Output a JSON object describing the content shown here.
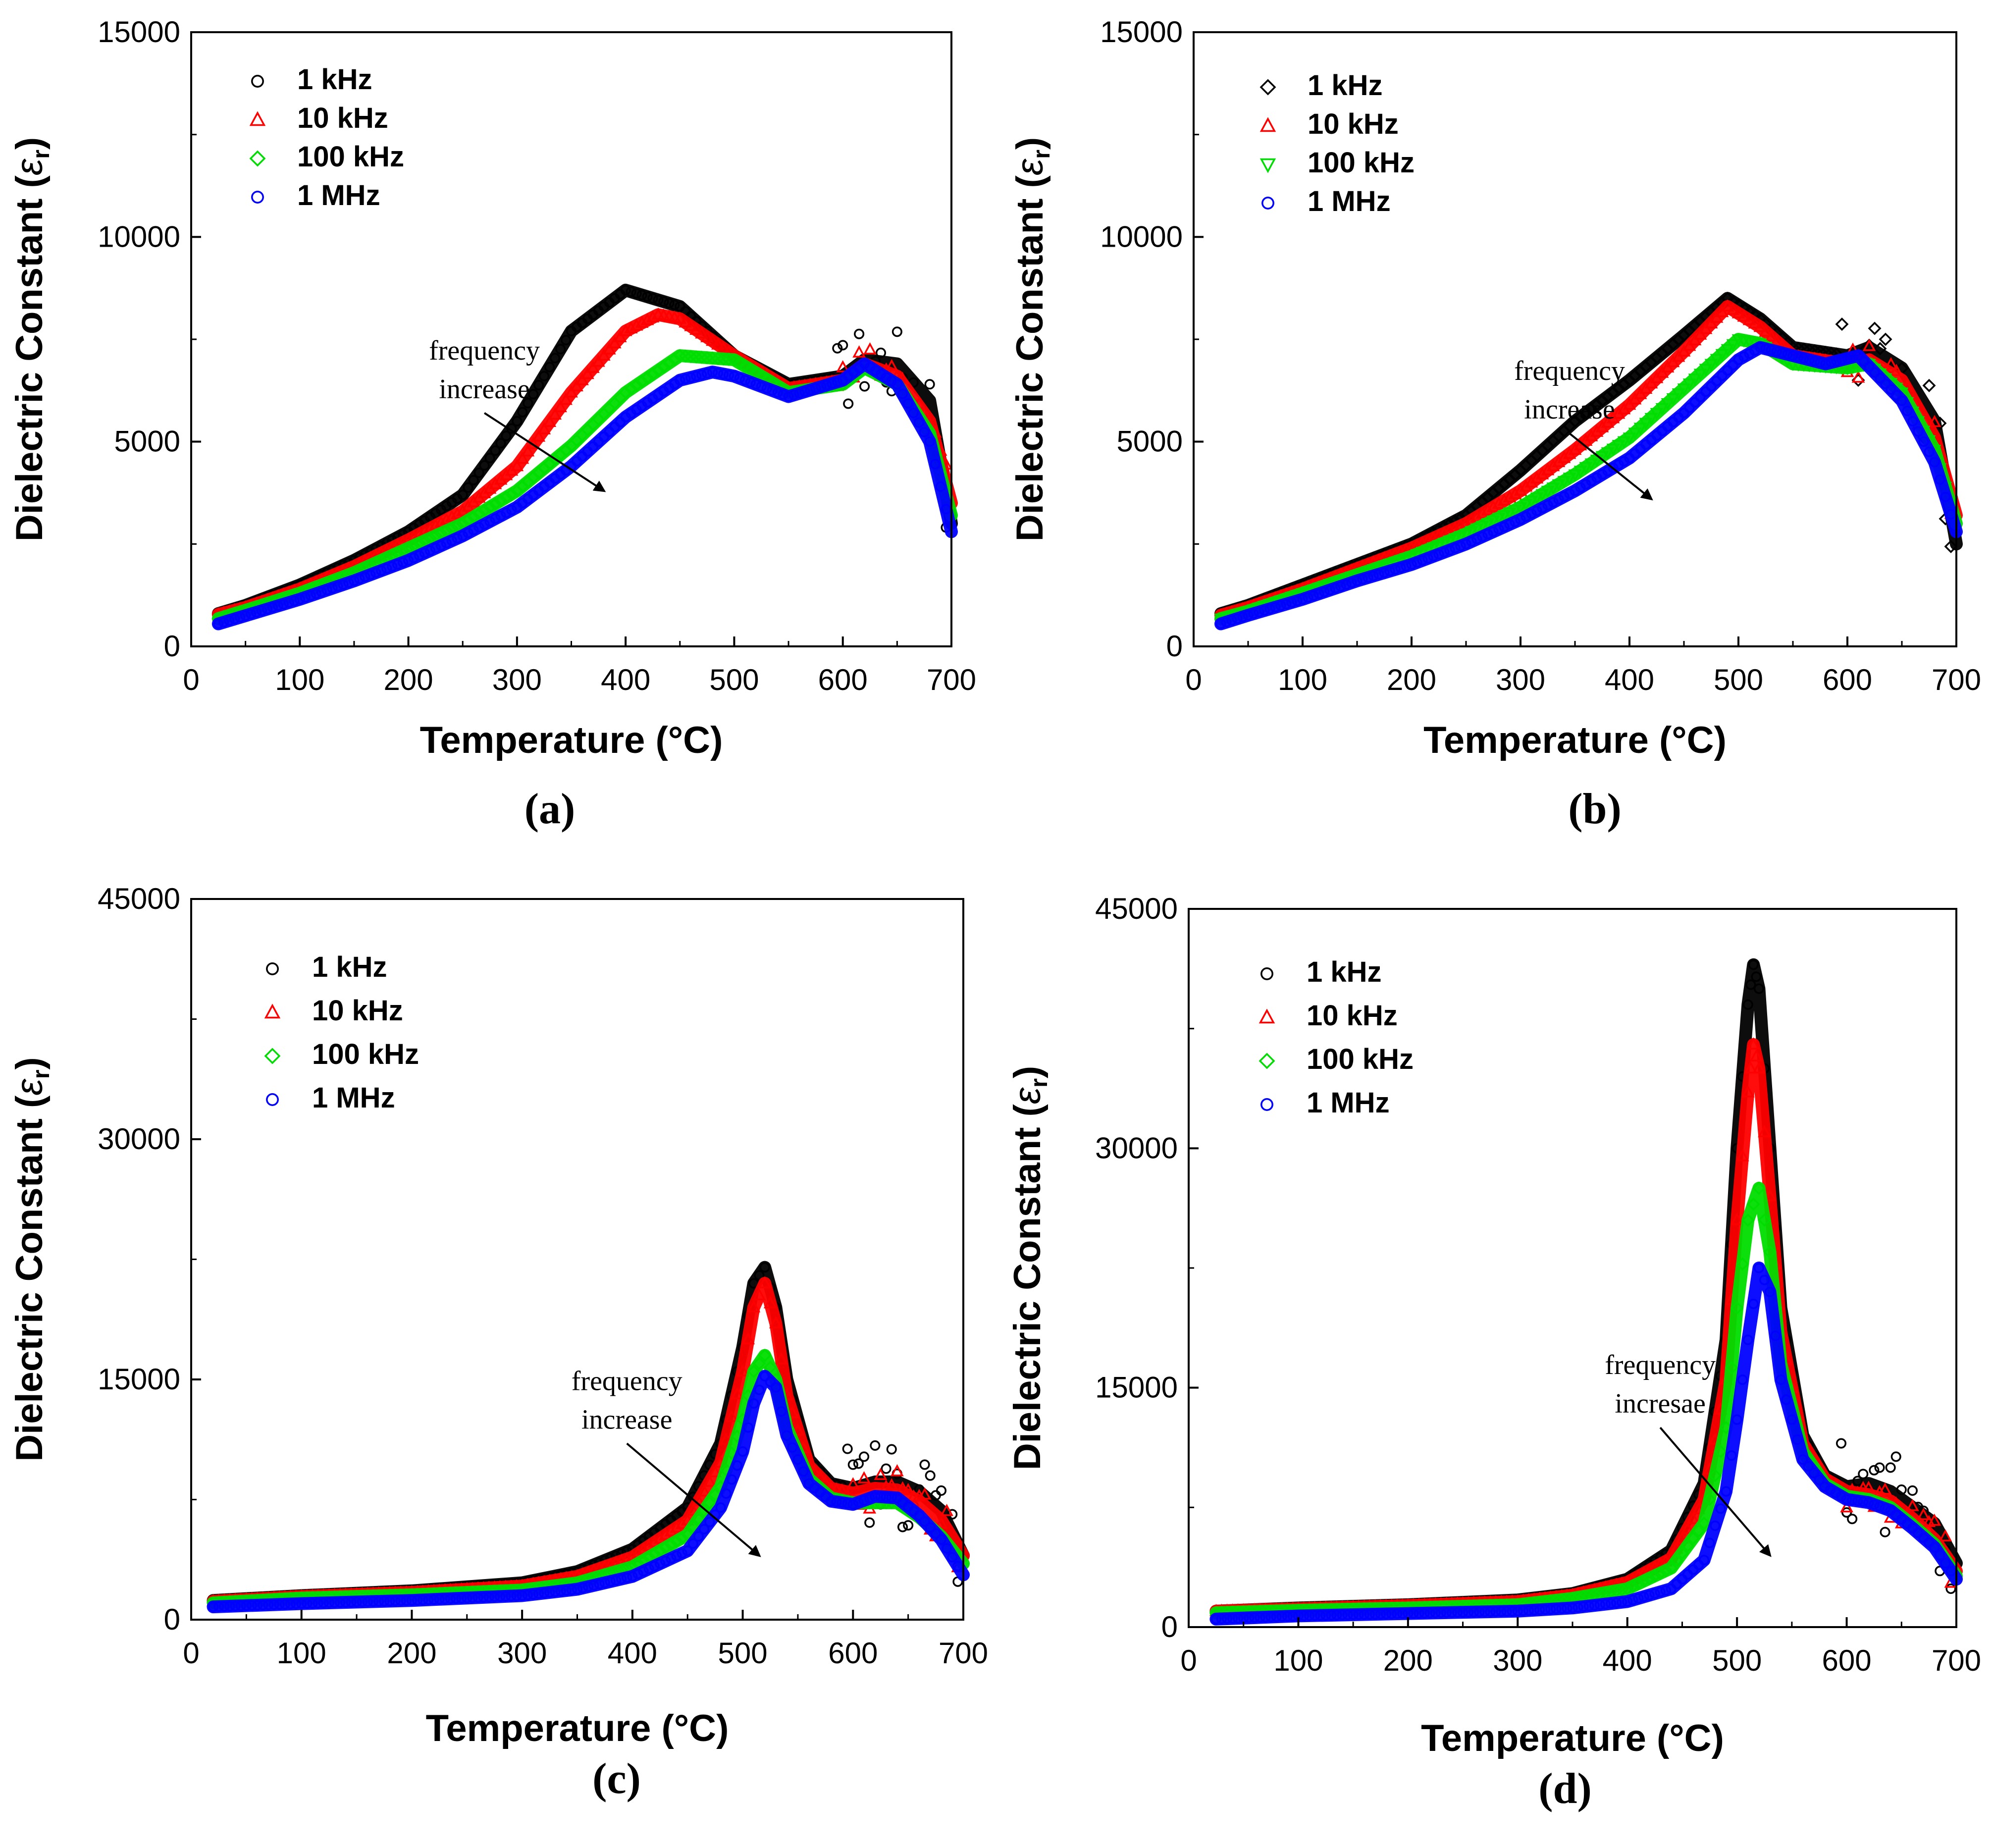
{
  "chart_data": [
    {
      "type": "scatter",
      "panel_label": "(a)",
      "xlabel": "Temperature (°C)",
      "ylabel": "Dielectric Constant (εr)",
      "ylabel_main": "Dielectric Constant (",
      "ylabel_symbol": "ε",
      "ylabel_sub": "r",
      "ylabel_close": ")",
      "xlim": [
        0,
        700
      ],
      "ylim": [
        0,
        15000
      ],
      "xticks": [
        0,
        100,
        200,
        300,
        400,
        500,
        600,
        700
      ],
      "yticks": [
        0,
        5000,
        10000,
        15000
      ],
      "legend_position": "top-left",
      "annotation": {
        "line1": "frequency",
        "line2": "increase",
        "arrow_from": [
          270,
          5700
        ],
        "arrow_to": [
          380,
          3800
        ]
      },
      "series": [
        {
          "name": "1 kHz",
          "color": "#000000",
          "marker": "circle",
          "x": [
            25,
            50,
            100,
            150,
            200,
            250,
            300,
            350,
            400,
            450,
            500,
            550,
            600,
            620,
            650,
            680,
            700
          ],
          "y": [
            800,
            1000,
            1500,
            2100,
            2800,
            3700,
            5500,
            7700,
            8700,
            8300,
            7100,
            6400,
            6600,
            7000,
            6900,
            6000,
            3000
          ]
        },
        {
          "name": "10 kHz",
          "color": "#ff0000",
          "marker": "triangle",
          "x": [
            25,
            50,
            100,
            150,
            200,
            250,
            300,
            350,
            400,
            430,
            450,
            500,
            550,
            600,
            620,
            650,
            680,
            700
          ],
          "y": [
            780,
            950,
            1400,
            1950,
            2600,
            3300,
            4400,
            6200,
            7700,
            8100,
            8000,
            7100,
            6300,
            6500,
            6900,
            6600,
            5500,
            3500
          ]
        },
        {
          "name": "100 kHz",
          "color": "#00dd00",
          "marker": "diamond",
          "x": [
            25,
            50,
            100,
            150,
            200,
            250,
            300,
            350,
            400,
            450,
            500,
            550,
            600,
            620,
            650,
            680,
            700
          ],
          "y": [
            680,
            880,
            1300,
            1800,
            2400,
            3000,
            3800,
            4900,
            6200,
            7100,
            7000,
            6200,
            6400,
            6800,
            6400,
            5200,
            3200
          ]
        },
        {
          "name": "1 MHz",
          "color": "#0000ff",
          "marker": "circle",
          "x": [
            25,
            50,
            100,
            150,
            200,
            250,
            300,
            350,
            400,
            450,
            480,
            500,
            550,
            600,
            620,
            650,
            680,
            700
          ],
          "y": [
            550,
            750,
            1150,
            1600,
            2100,
            2700,
            3400,
            4400,
            5600,
            6500,
            6700,
            6600,
            6100,
            6500,
            6900,
            6400,
            5000,
            2800
          ]
        }
      ]
    },
    {
      "type": "scatter",
      "panel_label": "(b)",
      "xlabel": "Temperature (°C)",
      "ylabel": "Dielectric Constant (εr)",
      "ylabel_main": "Dielectric Constant (",
      "ylabel_symbol": "ε",
      "ylabel_sub": "r",
      "ylabel_close": ")",
      "xlim": [
        0,
        700
      ],
      "ylim": [
        0,
        15000
      ],
      "xticks": [
        0,
        100,
        200,
        300,
        400,
        500,
        600,
        700
      ],
      "yticks": [
        0,
        5000,
        10000,
        15000
      ],
      "legend_position": "top-left",
      "annotation": {
        "line1": "frequency",
        "line2": "increase",
        "arrow_from": [
          345,
          5200
        ],
        "arrow_to": [
          420,
          3600
        ]
      },
      "series": [
        {
          "name": "1 kHz",
          "color": "#000000",
          "marker": "diamond",
          "x": [
            25,
            50,
            100,
            150,
            200,
            250,
            300,
            350,
            400,
            450,
            490,
            520,
            550,
            600,
            620,
            650,
            680,
            700
          ],
          "y": [
            800,
            1000,
            1500,
            2000,
            2500,
            3200,
            4300,
            5500,
            6500,
            7600,
            8500,
            8000,
            7300,
            7100,
            7300,
            6800,
            5500,
            2500
          ]
        },
        {
          "name": "10 kHz",
          "color": "#ff0000",
          "marker": "triangle",
          "x": [
            25,
            50,
            100,
            150,
            200,
            250,
            300,
            350,
            400,
            450,
            490,
            520,
            550,
            600,
            620,
            650,
            680,
            700
          ],
          "y": [
            760,
            950,
            1400,
            1900,
            2400,
            3000,
            3800,
            4800,
            5900,
            7200,
            8300,
            7800,
            7100,
            6900,
            7000,
            6500,
            5100,
            3200
          ]
        },
        {
          "name": "100 kHz",
          "color": "#00dd00",
          "marker": "triangle-down",
          "x": [
            25,
            50,
            100,
            150,
            200,
            250,
            300,
            350,
            400,
            450,
            500,
            520,
            550,
            600,
            620,
            650,
            680,
            700
          ],
          "y": [
            680,
            860,
            1300,
            1750,
            2200,
            2750,
            3400,
            4200,
            5100,
            6300,
            7500,
            7400,
            6900,
            6800,
            6900,
            6200,
            4800,
            3000
          ]
        },
        {
          "name": "1 MHz",
          "color": "#0000ff",
          "marker": "circle",
          "x": [
            25,
            50,
            100,
            150,
            200,
            250,
            300,
            350,
            400,
            450,
            500,
            520,
            550,
            580,
            610,
            650,
            680,
            700
          ],
          "y": [
            550,
            760,
            1150,
            1600,
            2000,
            2500,
            3100,
            3800,
            4600,
            5700,
            7000,
            7300,
            7100,
            6900,
            7100,
            6000,
            4500,
            2800
          ]
        }
      ]
    },
    {
      "type": "scatter",
      "panel_label": "(c)",
      "xlabel": "Temperature (°C)",
      "ylabel": "Dielectric Constant (εr)",
      "ylabel_main": "Dielectric Constant (",
      "ylabel_symbol": "ε",
      "ylabel_sub": "r",
      "ylabel_close": ")",
      "xlim": [
        0,
        700
      ],
      "ylim": [
        0,
        45000
      ],
      "xticks": [
        0,
        100,
        200,
        300,
        400,
        500,
        600,
        700
      ],
      "yticks": [
        0,
        15000,
        30000,
        45000
      ],
      "legend_position": "top-left",
      "annotation": {
        "line1": "frequency",
        "line2": "increase",
        "arrow_from": [
          395,
          11000
        ],
        "arrow_to": [
          515,
          4000
        ]
      },
      "series": [
        {
          "name": "1 kHz",
          "color": "#000000",
          "marker": "circle",
          "x": [
            20,
            100,
            200,
            300,
            350,
            400,
            450,
            480,
            500,
            510,
            520,
            530,
            540,
            560,
            580,
            600,
            620,
            640,
            660,
            680,
            700
          ],
          "y": [
            1200,
            1500,
            1800,
            2300,
            3000,
            4400,
            7000,
            11000,
            17000,
            21000,
            22000,
            19500,
            15000,
            10000,
            8500,
            8200,
            8600,
            8600,
            8000,
            6800,
            4000
          ]
        },
        {
          "name": "10 kHz",
          "color": "#ff0000",
          "marker": "triangle",
          "x": [
            20,
            100,
            200,
            300,
            350,
            400,
            450,
            480,
            500,
            510,
            520,
            530,
            540,
            560,
            580,
            600,
            620,
            640,
            660,
            680,
            700
          ],
          "y": [
            1150,
            1450,
            1700,
            2100,
            2700,
            3900,
            6200,
            9800,
            15500,
            19500,
            21000,
            18500,
            14000,
            9600,
            8200,
            7900,
            8200,
            8100,
            7400,
            6200,
            4000
          ]
        },
        {
          "name": "100 kHz",
          "color": "#00dd00",
          "marker": "diamond",
          "x": [
            20,
            100,
            200,
            300,
            350,
            400,
            450,
            480,
            500,
            510,
            520,
            530,
            540,
            560,
            580,
            600,
            620,
            640,
            660,
            680,
            700
          ],
          "y": [
            1050,
            1350,
            1550,
            1850,
            2300,
            3300,
            5300,
            8300,
            12500,
            15500,
            16500,
            15000,
            12000,
            8800,
            7600,
            7300,
            7300,
            7300,
            6400,
            5200,
            3500
          ]
        },
        {
          "name": "1 MHz",
          "color": "#0000ff",
          "marker": "circle",
          "x": [
            20,
            100,
            200,
            300,
            350,
            400,
            450,
            480,
            500,
            510,
            520,
            530,
            540,
            560,
            580,
            600,
            620,
            640,
            660,
            680,
            700
          ],
          "y": [
            800,
            1000,
            1200,
            1500,
            1900,
            2700,
            4300,
            7000,
            10500,
            13500,
            15200,
            14500,
            11500,
            8500,
            7400,
            7200,
            7700,
            7600,
            6500,
            5000,
            2800
          ]
        }
      ]
    },
    {
      "type": "scatter",
      "panel_label": "(d)",
      "xlabel": "Temperature (°C)",
      "ylabel": "Dielectric Constant (εr)",
      "ylabel_main": "Dielectric Constant (",
      "ylabel_symbol": "ε",
      "ylabel_sub": "r",
      "ylabel_close": ")",
      "xlim": [
        0,
        700
      ],
      "ylim": [
        0,
        45000
      ],
      "xticks": [
        0,
        100,
        200,
        300,
        400,
        500,
        600,
        700
      ],
      "yticks": [
        0,
        15000,
        30000,
        45000
      ],
      "legend_position": "top-left",
      "annotation": {
        "line1": "frequency",
        "line2": "incresae",
        "arrow_from": [
          430,
          12500
        ],
        "arrow_to": [
          530,
          4500
        ]
      },
      "series": [
        {
          "name": "1 kHz",
          "color": "#000000",
          "marker": "circle",
          "x": [
            25,
            100,
            200,
            300,
            350,
            400,
            440,
            470,
            490,
            500,
            510,
            515,
            520,
            530,
            540,
            560,
            580,
            600,
            620,
            640,
            660,
            680,
            700
          ],
          "y": [
            1000,
            1200,
            1400,
            1700,
            2100,
            3000,
            4800,
            9000,
            18000,
            30000,
            39000,
            41500,
            40000,
            30000,
            20000,
            12000,
            9500,
            8800,
            9000,
            8500,
            7500,
            6500,
            4000
          ]
        },
        {
          "name": "10 kHz",
          "color": "#ff0000",
          "marker": "triangle",
          "x": [
            25,
            100,
            200,
            300,
            350,
            400,
            440,
            470,
            490,
            500,
            510,
            515,
            520,
            530,
            540,
            560,
            580,
            600,
            620,
            640,
            660,
            680,
            700
          ],
          "y": [
            1000,
            1150,
            1350,
            1600,
            2000,
            2800,
            4300,
            8000,
            15500,
            25500,
            33500,
            36500,
            35000,
            27000,
            18500,
            11500,
            9300,
            8500,
            8300,
            7900,
            6800,
            5500,
            3500
          ]
        },
        {
          "name": "100 kHz",
          "color": "#00dd00",
          "marker": "diamond",
          "x": [
            25,
            100,
            200,
            300,
            350,
            400,
            440,
            470,
            490,
            500,
            510,
            520,
            530,
            540,
            560,
            580,
            600,
            620,
            640,
            660,
            680,
            700
          ],
          "y": [
            900,
            1050,
            1200,
            1400,
            1800,
            2400,
            3700,
            6500,
            12500,
            20000,
            25500,
            27500,
            23500,
            16500,
            11000,
            9000,
            8200,
            8000,
            7500,
            6400,
            5200,
            3200
          ]
        },
        {
          "name": "1 MHz",
          "color": "#0000ff",
          "marker": "circle",
          "x": [
            25,
            100,
            200,
            300,
            350,
            400,
            440,
            470,
            490,
            500,
            510,
            520,
            530,
            540,
            560,
            580,
            600,
            620,
            640,
            660,
            680,
            700
          ],
          "y": [
            500,
            700,
            850,
            1000,
            1200,
            1600,
            2400,
            4200,
            8500,
            13000,
            18000,
            22500,
            21000,
            15500,
            10500,
            8800,
            8000,
            7800,
            7300,
            6200,
            5000,
            3000
          ]
        }
      ]
    }
  ]
}
